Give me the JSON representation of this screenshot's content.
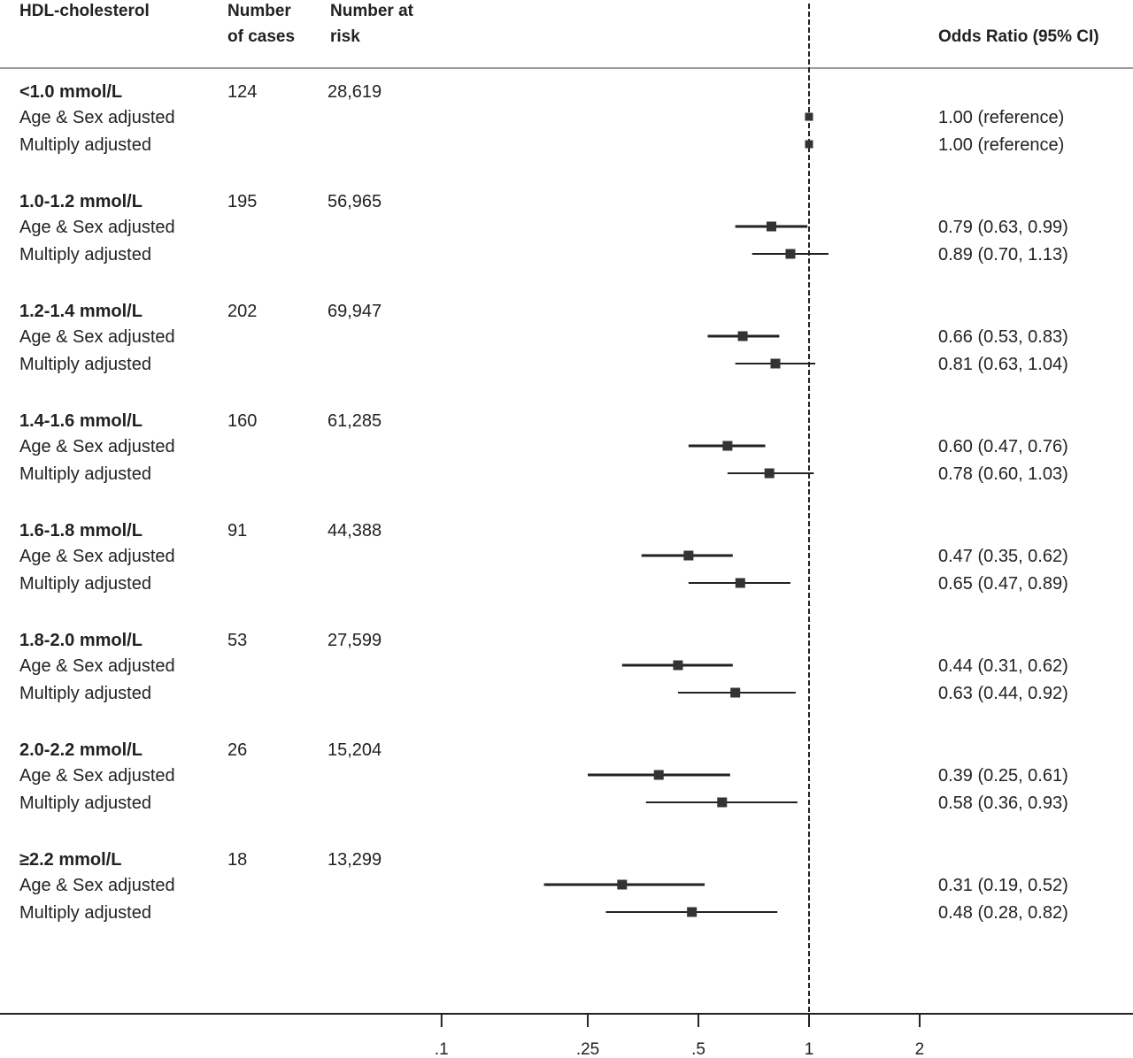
{
  "headers": {
    "group": "HDL-cholesterol",
    "cases": [
      "Number",
      "of cases"
    ],
    "risk": [
      "Number at",
      "risk"
    ],
    "or": "Odds Ratio (95% CI)"
  },
  "chart_data": {
    "type": "forest",
    "xscale": "log",
    "xlim": [
      0.1,
      3.5
    ],
    "reference_line": 1,
    "xticks": [
      {
        "value": 0.1,
        "label": ".1"
      },
      {
        "value": 0.25,
        "label": ".25"
      },
      {
        "value": 0.5,
        "label": ".5"
      },
      {
        "value": 1,
        "label": "1"
      },
      {
        "value": 2,
        "label": "2"
      }
    ],
    "groups": [
      {
        "label": "<1.0 mmol/L",
        "cases": "124",
        "at_risk": "28,619",
        "estimates": [
          {
            "label": "Age & Sex adjusted",
            "or": 1.0,
            "lo": 1.0,
            "hi": 1.0,
            "text": "1.00 (reference)"
          },
          {
            "label": "Multiply adjusted",
            "or": 1.0,
            "lo": 1.0,
            "hi": 1.0,
            "text": "1.00 (reference)"
          }
        ]
      },
      {
        "label": "1.0-1.2 mmol/L",
        "cases": "195",
        "at_risk": "56,965",
        "estimates": [
          {
            "label": "Age & Sex adjusted",
            "or": 0.79,
            "lo": 0.63,
            "hi": 0.99,
            "text": "0.79 (0.63, 0.99)"
          },
          {
            "label": "Multiply adjusted",
            "or": 0.89,
            "lo": 0.7,
            "hi": 1.13,
            "text": "0.89 (0.70, 1.13)"
          }
        ]
      },
      {
        "label": "1.2-1.4 mmol/L",
        "cases": "202",
        "at_risk": "69,947",
        "estimates": [
          {
            "label": "Age & Sex adjusted",
            "or": 0.66,
            "lo": 0.53,
            "hi": 0.83,
            "text": "0.66 (0.53, 0.83)"
          },
          {
            "label": "Multiply adjusted",
            "or": 0.81,
            "lo": 0.63,
            "hi": 1.04,
            "text": "0.81 (0.63, 1.04)"
          }
        ]
      },
      {
        "label": "1.4-1.6 mmol/L",
        "cases": "160",
        "at_risk": "61,285",
        "estimates": [
          {
            "label": "Age & Sex adjusted",
            "or": 0.6,
            "lo": 0.47,
            "hi": 0.76,
            "text": "0.60 (0.47, 0.76)"
          },
          {
            "label": "Multiply adjusted",
            "or": 0.78,
            "lo": 0.6,
            "hi": 1.03,
            "text": "0.78 (0.60, 1.03)"
          }
        ]
      },
      {
        "label": "1.6-1.8 mmol/L",
        "cases": "91",
        "at_risk": "44,388",
        "estimates": [
          {
            "label": "Age & Sex adjusted",
            "or": 0.47,
            "lo": 0.35,
            "hi": 0.62,
            "text": "0.47 (0.35, 0.62)"
          },
          {
            "label": "Multiply adjusted",
            "or": 0.65,
            "lo": 0.47,
            "hi": 0.89,
            "text": "0.65 (0.47, 0.89)"
          }
        ]
      },
      {
        "label": "1.8-2.0 mmol/L",
        "cases": "53",
        "at_risk": "27,599",
        "estimates": [
          {
            "label": "Age & Sex adjusted",
            "or": 0.44,
            "lo": 0.31,
            "hi": 0.62,
            "text": "0.44 (0.31, 0.62)"
          },
          {
            "label": "Multiply adjusted",
            "or": 0.63,
            "lo": 0.44,
            "hi": 0.92,
            "text": "0.63 (0.44, 0.92)"
          }
        ]
      },
      {
        "label": "2.0-2.2 mmol/L",
        "cases": "26",
        "at_risk": "15,204",
        "estimates": [
          {
            "label": "Age & Sex adjusted",
            "or": 0.39,
            "lo": 0.25,
            "hi": 0.61,
            "text": "0.39 (0.25, 0.61)"
          },
          {
            "label": "Multiply adjusted",
            "or": 0.58,
            "lo": 0.36,
            "hi": 0.93,
            "text": "0.58 (0.36, 0.93)"
          }
        ]
      },
      {
        "label": "≥2.2 mmol/L",
        "cases": "18",
        "at_risk": "13,299",
        "estimates": [
          {
            "label": "Age & Sex adjusted",
            "or": 0.31,
            "lo": 0.19,
            "hi": 0.52,
            "text": "0.31 (0.19, 0.52)"
          },
          {
            "label": "Multiply adjusted",
            "or": 0.48,
            "lo": 0.28,
            "hi": 0.82,
            "text": "0.48 (0.28, 0.82)"
          }
        ]
      }
    ]
  },
  "colors": {
    "ink": "#222222",
    "marker": "#333333"
  }
}
